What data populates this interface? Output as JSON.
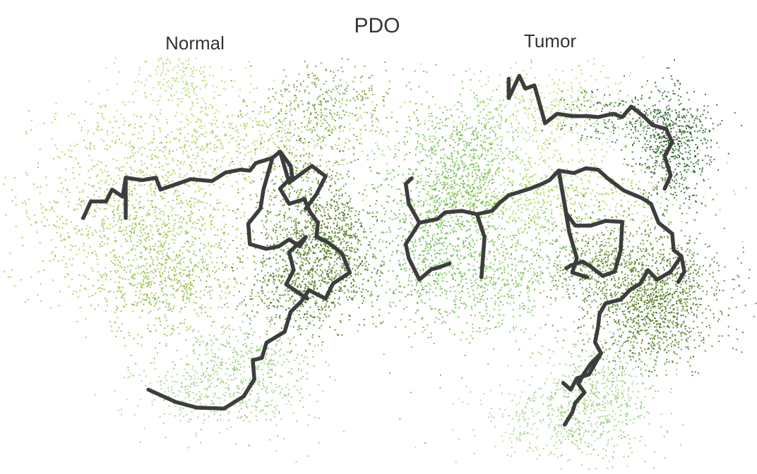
{
  "chart_data": {
    "type": "scatter",
    "title": "PDO",
    "description_kind": "trajectory-embedding",
    "point_opacity": 0.85,
    "trajectory_color": "#3d3d3d",
    "panels": [
      {
        "title": "Normal",
        "clusters": [
          {
            "color": "#9cc94a",
            "cx": 0.19,
            "cy": 0.47,
            "sx": 0.075,
            "sy": 0.1,
            "n": 1300
          },
          {
            "color": "#8dbb3c",
            "cx": 0.22,
            "cy": 0.6,
            "sx": 0.045,
            "sy": 0.07,
            "n": 450
          },
          {
            "color": "#a8cf5c",
            "cx": 0.32,
            "cy": 0.29,
            "sx": 0.12,
            "sy": 0.045,
            "n": 650
          },
          {
            "color": "#b4d86a",
            "cx": 0.24,
            "cy": 0.16,
            "sx": 0.04,
            "sy": 0.045,
            "n": 250
          },
          {
            "color": "#6f9a2e",
            "cx": 0.43,
            "cy": 0.21,
            "sx": 0.05,
            "sy": 0.04,
            "n": 300
          },
          {
            "color": "#5e8b25",
            "cx": 0.4,
            "cy": 0.43,
            "sx": 0.035,
            "sy": 0.08,
            "n": 500
          },
          {
            "color": "#557f22",
            "cx": 0.41,
            "cy": 0.59,
            "sx": 0.045,
            "sy": 0.055,
            "n": 700
          },
          {
            "color": "#4e7a1f",
            "cx": 0.44,
            "cy": 0.5,
            "sx": 0.03,
            "sy": 0.05,
            "n": 450
          },
          {
            "color": "#93c974",
            "cx": 0.33,
            "cy": 0.78,
            "sx": 0.045,
            "sy": 0.07,
            "n": 550
          },
          {
            "color": "#a7d38a",
            "cx": 0.25,
            "cy": 0.83,
            "sx": 0.045,
            "sy": 0.03,
            "n": 200
          }
        ],
        "trajectory": [
          [
            [
              0.11,
              0.46
            ],
            [
              0.12,
              0.425
            ],
            [
              0.14,
              0.425
            ],
            [
              0.148,
              0.4
            ],
            [
              0.162,
              0.415
            ],
            [
              0.166,
              0.375
            ],
            [
              0.188,
              0.38
            ],
            [
              0.206,
              0.375
            ],
            [
              0.212,
              0.4
            ],
            [
              0.23,
              0.39
            ],
            [
              0.252,
              0.378
            ],
            [
              0.28,
              0.382
            ],
            [
              0.298,
              0.364
            ],
            [
              0.318,
              0.358
            ],
            [
              0.33,
              0.36
            ],
            [
              0.338,
              0.344
            ]
          ],
          [
            [
              0.166,
              0.375
            ],
            [
              0.166,
              0.46
            ]
          ],
          [
            [
              0.338,
              0.344
            ],
            [
              0.36,
              0.333
            ],
            [
              0.37,
              0.32
            ],
            [
              0.384,
              0.35
            ],
            [
              0.386,
              0.372
            ],
            [
              0.37,
              0.398
            ],
            [
              0.382,
              0.43
            ],
            [
              0.402,
              0.42
            ],
            [
              0.41,
              0.448
            ],
            [
              0.42,
              0.47
            ],
            [
              0.418,
              0.5
            ],
            [
              0.434,
              0.512
            ],
            [
              0.452,
              0.535
            ],
            [
              0.462,
              0.575
            ],
            [
              0.44,
              0.598
            ],
            [
              0.43,
              0.63
            ],
            [
              0.408,
              0.612
            ],
            [
              0.398,
              0.636
            ],
            [
              0.384,
              0.658
            ],
            [
              0.376,
              0.7
            ],
            [
              0.352,
              0.723
            ],
            [
              0.346,
              0.755
            ],
            [
              0.334,
              0.76
            ],
            [
              0.336,
              0.8
            ],
            [
              0.322,
              0.836
            ],
            [
              0.296,
              0.862
            ],
            [
              0.26,
              0.86
            ],
            [
              0.232,
              0.848
            ],
            [
              0.196,
              0.822
            ]
          ],
          [
            [
              0.36,
              0.333
            ],
            [
              0.348,
              0.4
            ],
            [
              0.344,
              0.44
            ],
            [
              0.328,
              0.472
            ],
            [
              0.33,
              0.515
            ],
            [
              0.352,
              0.525
            ],
            [
              0.368,
              0.52
            ],
            [
              0.382,
              0.505
            ],
            [
              0.396,
              0.52
            ],
            [
              0.404,
              0.5
            ]
          ],
          [
            [
              0.37,
              0.32
            ],
            [
              0.382,
              0.385
            ],
            [
              0.412,
              0.35
            ],
            [
              0.43,
              0.372
            ],
            [
              0.418,
              0.41
            ],
            [
              0.404,
              0.44
            ]
          ],
          [
            [
              0.404,
              0.5
            ],
            [
              0.382,
              0.532
            ],
            [
              0.388,
              0.57
            ],
            [
              0.378,
              0.6
            ],
            [
              0.406,
              0.63
            ]
          ]
        ]
      },
      {
        "title": "Tumor",
        "clusters": [
          {
            "color": "#63b548",
            "cx": 0.58,
            "cy": 0.48,
            "sx": 0.045,
            "sy": 0.12,
            "n": 1100
          },
          {
            "color": "#72c04f",
            "cx": 0.62,
            "cy": 0.33,
            "sx": 0.03,
            "sy": 0.07,
            "n": 450
          },
          {
            "color": "#7cc453",
            "cx": 0.67,
            "cy": 0.58,
            "sx": 0.04,
            "sy": 0.06,
            "n": 450
          },
          {
            "color": "#a8d155",
            "cx": 0.73,
            "cy": 0.41,
            "sx": 0.09,
            "sy": 0.04,
            "n": 700
          },
          {
            "color": "#b3d86a",
            "cx": 0.73,
            "cy": 0.23,
            "sx": 0.06,
            "sy": 0.05,
            "n": 450
          },
          {
            "color": "#326b2a",
            "cx": 0.84,
            "cy": 0.25,
            "sx": 0.05,
            "sy": 0.03,
            "n": 300
          },
          {
            "color": "#235c26",
            "cx": 0.89,
            "cy": 0.31,
            "sx": 0.025,
            "sy": 0.06,
            "n": 500
          },
          {
            "color": "#5e8b25",
            "cx": 0.79,
            "cy": 0.55,
            "sx": 0.035,
            "sy": 0.05,
            "n": 450
          },
          {
            "color": "#557f22",
            "cx": 0.87,
            "cy": 0.6,
            "sx": 0.045,
            "sy": 0.06,
            "n": 800
          },
          {
            "color": "#4e7a1f",
            "cx": 0.86,
            "cy": 0.68,
            "sx": 0.04,
            "sy": 0.05,
            "n": 500
          },
          {
            "color": "#93c974",
            "cx": 0.79,
            "cy": 0.84,
            "sx": 0.04,
            "sy": 0.07,
            "n": 550
          },
          {
            "color": "#a7d38a",
            "cx": 0.73,
            "cy": 0.88,
            "sx": 0.05,
            "sy": 0.045,
            "n": 300
          }
        ],
        "trajectory": [
          [
            [
              0.672,
              0.166
            ],
            [
              0.672,
              0.207
            ],
            [
              0.686,
              0.16
            ],
            [
              0.694,
              0.187
            ],
            [
              0.706,
              0.18
            ],
            [
              0.716,
              0.237
            ],
            [
              0.72,
              0.26
            ],
            [
              0.736,
              0.24
            ],
            [
              0.756,
              0.245
            ],
            [
              0.776,
              0.245
            ],
            [
              0.79,
              0.247
            ],
            [
              0.81,
              0.24
            ],
            [
              0.822,
              0.247
            ],
            [
              0.834,
              0.225
            ],
            [
              0.85,
              0.245
            ],
            [
              0.862,
              0.264
            ],
            [
              0.88,
              0.272
            ],
            [
              0.888,
              0.3
            ],
            [
              0.878,
              0.33
            ],
            [
              0.886,
              0.37
            ],
            [
              0.878,
              0.398
            ]
          ],
          [
            [
              0.544,
              0.376
            ],
            [
              0.536,
              0.388
            ],
            [
              0.54,
              0.43
            ],
            [
              0.554,
              0.47
            ],
            [
              0.536,
              0.515
            ],
            [
              0.54,
              0.545
            ],
            [
              0.554,
              0.59
            ],
            [
              0.57,
              0.568
            ],
            [
              0.578,
              0.565
            ],
            [
              0.594,
              0.556
            ]
          ],
          [
            [
              0.554,
              0.47
            ],
            [
              0.578,
              0.462
            ],
            [
              0.588,
              0.448
            ],
            [
              0.61,
              0.445
            ],
            [
              0.63,
              0.452
            ],
            [
              0.64,
              0.5
            ],
            [
              0.636,
              0.585
            ]
          ],
          [
            [
              0.63,
              0.452
            ],
            [
              0.65,
              0.445
            ],
            [
              0.66,
              0.428
            ],
            [
              0.672,
              0.412
            ],
            [
              0.7,
              0.398
            ],
            [
              0.716,
              0.388
            ],
            [
              0.726,
              0.38
            ],
            [
              0.738,
              0.36
            ],
            [
              0.758,
              0.365
            ],
            [
              0.774,
              0.355
            ],
            [
              0.79,
              0.358
            ],
            [
              0.804,
              0.378
            ],
            [
              0.824,
              0.402
            ],
            [
              0.848,
              0.418
            ],
            [
              0.86,
              0.43
            ],
            [
              0.87,
              0.47
            ],
            [
              0.888,
              0.493
            ],
            [
              0.89,
              0.528
            ],
            [
              0.9,
              0.54
            ],
            [
              0.904,
              0.573
            ],
            [
              0.896,
              0.595
            ]
          ],
          [
            [
              0.738,
              0.36
            ],
            [
              0.748,
              0.45
            ],
            [
              0.76,
              0.476
            ],
            [
              0.78,
              0.476
            ],
            [
              0.8,
              0.466
            ],
            [
              0.822,
              0.468
            ],
            [
              0.82,
              0.528
            ],
            [
              0.812,
              0.573
            ],
            [
              0.796,
              0.582
            ],
            [
              0.78,
              0.562
            ],
            [
              0.77,
              0.552
            ],
            [
              0.754,
              0.56
            ],
            [
              0.748,
              0.566
            ]
          ],
          [
            [
              0.738,
              0.36
            ],
            [
              0.744,
              0.415
            ],
            [
              0.752,
              0.49
            ],
            [
              0.762,
              0.545
            ],
            [
              0.756,
              0.575
            ],
            [
              0.776,
              0.585
            ]
          ],
          [
            [
              0.9,
              0.54
            ],
            [
              0.886,
              0.573
            ],
            [
              0.868,
              0.59
            ],
            [
              0.856,
              0.57
            ],
            [
              0.846,
              0.598
            ],
            [
              0.832,
              0.612
            ],
            [
              0.82,
              0.632
            ],
            [
              0.8,
              0.64
            ],
            [
              0.792,
              0.662
            ],
            [
              0.79,
              0.69
            ],
            [
              0.786,
              0.722
            ],
            [
              0.794,
              0.745
            ],
            [
              0.78,
              0.768
            ],
            [
              0.77,
              0.792
            ],
            [
              0.764,
              0.81
            ],
            [
              0.772,
              0.828
            ],
            [
              0.76,
              0.85
            ],
            [
              0.756,
              0.87
            ],
            [
              0.746,
              0.896
            ]
          ],
          [
            [
              0.794,
              0.745
            ],
            [
              0.778,
              0.79
            ],
            [
              0.762,
              0.798
            ],
            [
              0.754,
              0.822
            ],
            [
              0.744,
              0.808
            ]
          ]
        ]
      }
    ]
  }
}
